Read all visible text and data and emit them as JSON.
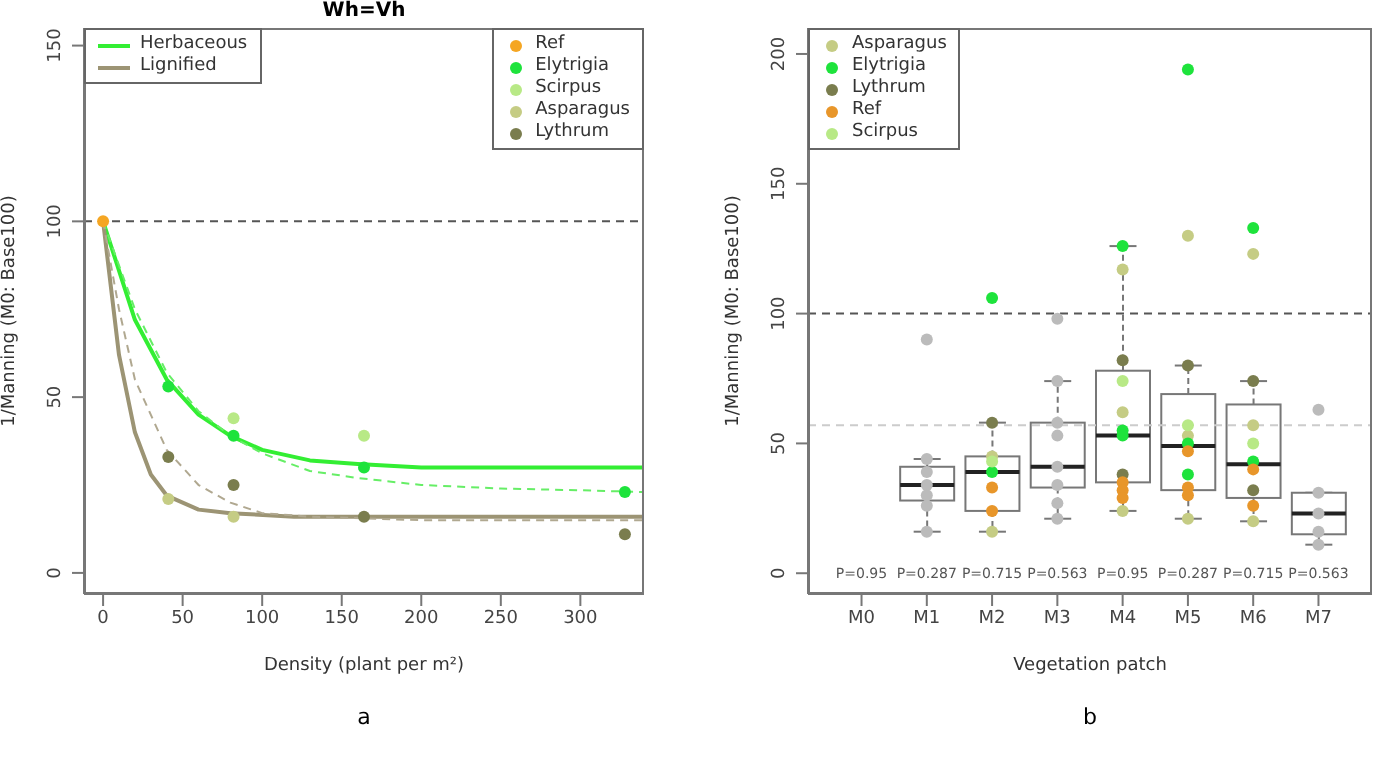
{
  "chart_data": [
    {
      "type": "scatter",
      "title": "Wh=Vh",
      "xlabel": "Density (plant per m²)",
      "ylabel": "1/Manning (M0: Base100)",
      "annotations": [
        "a"
      ],
      "xlim": [
        -12,
        340
      ],
      "xticks": [
        0,
        50,
        100,
        150,
        200,
        250,
        300
      ],
      "ylim": [
        -6,
        155
      ],
      "yticks": [
        0,
        50,
        100,
        150
      ],
      "grid": false,
      "legend": "top",
      "marker": "circle",
      "ref_lines": [
        {
          "axis": "y",
          "value": 100,
          "color": "#555555",
          "line_style": "dashed"
        }
      ],
      "series": [
        {
          "name": "Herbaceous",
          "type": "line",
          "marker": "none",
          "color": "#33ee33",
          "line_style": "solid",
          "x": [
            0,
            20,
            40,
            60,
            80,
            100,
            130,
            160,
            200,
            250,
            300,
            340
          ],
          "values": [
            100,
            72,
            55,
            45,
            39,
            35,
            32,
            31,
            30,
            30,
            30,
            30
          ]
        },
        {
          "name": "Lignified",
          "type": "line",
          "marker": "none",
          "color": "#9c9474",
          "line_style": "solid",
          "x": [
            0,
            10,
            20,
            30,
            40,
            60,
            80,
            120,
            200,
            340
          ],
          "values": [
            100,
            62,
            40,
            28,
            22,
            18,
            17,
            16,
            16,
            16
          ]
        },
        {
          "type": "line",
          "marker": "none",
          "color": "#66ee66",
          "line_style": "dashed",
          "x": [
            0,
            20,
            40,
            60,
            80,
            100,
            130,
            160,
            200,
            250,
            300,
            340
          ],
          "values": [
            100,
            75,
            57,
            46,
            39,
            34,
            29,
            27,
            25,
            24,
            23.5,
            23
          ]
        },
        {
          "type": "line",
          "marker": "none",
          "color": "#b0a890",
          "line_style": "dashed",
          "x": [
            0,
            10,
            20,
            40,
            60,
            80,
            100,
            130,
            200,
            340
          ],
          "values": [
            100,
            75,
            55,
            35,
            25,
            20,
            17,
            16,
            15,
            15
          ]
        },
        {
          "name": "Ref",
          "type": "scatter",
          "color": "#f5a623",
          "x": [
            0
          ],
          "values": [
            100
          ]
        },
        {
          "name": "Elytrigia",
          "type": "scatter",
          "color": "#1ee33c",
          "x": [
            41,
            82,
            164,
            328
          ],
          "values": [
            53,
            39,
            30,
            23
          ]
        },
        {
          "name": "Scirpus",
          "type": "scatter",
          "color": "#b8e986",
          "x": [
            82,
            164
          ],
          "values": [
            44,
            39
          ]
        },
        {
          "name": "Asparagus",
          "type": "scatter",
          "color": "#c5cc84",
          "x": [
            41,
            82
          ],
          "values": [
            21,
            16
          ]
        },
        {
          "name": "Lythrum",
          "type": "scatter",
          "color": "#7a7d4e",
          "x": [
            41,
            82,
            164,
            328
          ],
          "values": [
            33,
            25,
            16,
            11
          ]
        }
      ]
    },
    {
      "type": "box",
      "xlabel": "Vegetation patch",
      "ylabel": "1/Manning (M0: Base100)",
      "categories": [
        "M0",
        "M1",
        "M2",
        "M3",
        "M4",
        "M5",
        "M6",
        "M7"
      ],
      "ylim": [
        -8,
        210
      ],
      "yticks": [
        0,
        50,
        100,
        150,
        200
      ],
      "grid": false,
      "legend": "top left",
      "marker": "circle",
      "boxes": [
        null,
        {
          "low": 16,
          "q1": 28,
          "median": 34,
          "q3": 41,
          "high": 44
        },
        {
          "low": 16,
          "q1": 24,
          "median": 39,
          "q3": 45,
          "high": 58
        },
        {
          "low": 21,
          "q1": 33,
          "median": 41,
          "q3": 58,
          "high": 74
        },
        {
          "low": 24,
          "q1": 35,
          "median": 53,
          "q3": 78,
          "high": 126
        },
        {
          "low": 21,
          "q1": 32,
          "median": 49,
          "q3": 69,
          "high": 80
        },
        {
          "low": 20,
          "q1": 29,
          "median": 42,
          "q3": 65,
          "high": 74
        },
        {
          "low": 11,
          "q1": 15,
          "median": 23,
          "q3": 31,
          "high": 31
        }
      ],
      "ref_lines": [
        {
          "axis": "y",
          "value": 100,
          "color": "#555555",
          "line_style": "dashed"
        },
        {
          "axis": "y",
          "value": 57,
          "color": "#cccccc",
          "line_style": "dashed"
        }
      ],
      "annotations": [
        "P=0.95",
        "P=0.287",
        "P=0.715",
        "P=0.563",
        "P=0.95",
        "P=0.287",
        "P=0.715",
        "P=0.563",
        "b"
      ],
      "series": [
        {
          "type": "scatter",
          "color": "#bbbbbb",
          "x": [
            "M1",
            "M1",
            "M1",
            "M1",
            "M1",
            "M1",
            "M1",
            "M3",
            "M3",
            "M3",
            "M3",
            "M3",
            "M3",
            "M3",
            "M3",
            "M7",
            "M7",
            "M7",
            "M7",
            "M7"
          ],
          "values": [
            90,
            44,
            39,
            34,
            30,
            26,
            16,
            98,
            74,
            58,
            53,
            41,
            34,
            27,
            21,
            63,
            31,
            23,
            16,
            11
          ]
        },
        {
          "name": "Asparagus",
          "type": "scatter",
          "color": "#c5cc84",
          "x": [
            "M2",
            "M2",
            "M4",
            "M4",
            "M4",
            "M5",
            "M5",
            "M5",
            "M6",
            "M6",
            "M6"
          ],
          "values": [
            45,
            16,
            117,
            62,
            24,
            130,
            53,
            21,
            123,
            57,
            20
          ]
        },
        {
          "name": "Elytrigia",
          "type": "scatter",
          "color": "#1ee33c",
          "x": [
            "M2",
            "M2",
            "M4",
            "M4",
            "M4",
            "M5",
            "M5",
            "M5",
            "M6",
            "M6"
          ],
          "values": [
            106,
            39,
            126,
            55,
            53,
            194,
            50,
            38,
            133,
            43
          ]
        },
        {
          "name": "Lythrum",
          "type": "scatter",
          "color": "#7a7d4e",
          "x": [
            "M2",
            "M4",
            "M4",
            "M5",
            "M6",
            "M6"
          ],
          "values": [
            58,
            82,
            38,
            80,
            74,
            32
          ]
        },
        {
          "name": "Ref",
          "type": "scatter",
          "color": "#e8962a",
          "x": [
            "M2",
            "M2",
            "M4",
            "M4",
            "M4",
            "M5",
            "M5",
            "M5",
            "M6",
            "M6"
          ],
          "values": [
            33,
            24,
            35,
            32,
            29,
            47,
            33,
            30,
            40,
            26
          ]
        },
        {
          "name": "Scirpus",
          "type": "scatter",
          "color": "#b8e986",
          "x": [
            "M2",
            "M4",
            "M5",
            "M6"
          ],
          "values": [
            43,
            74,
            57,
            50
          ]
        }
      ]
    }
  ]
}
